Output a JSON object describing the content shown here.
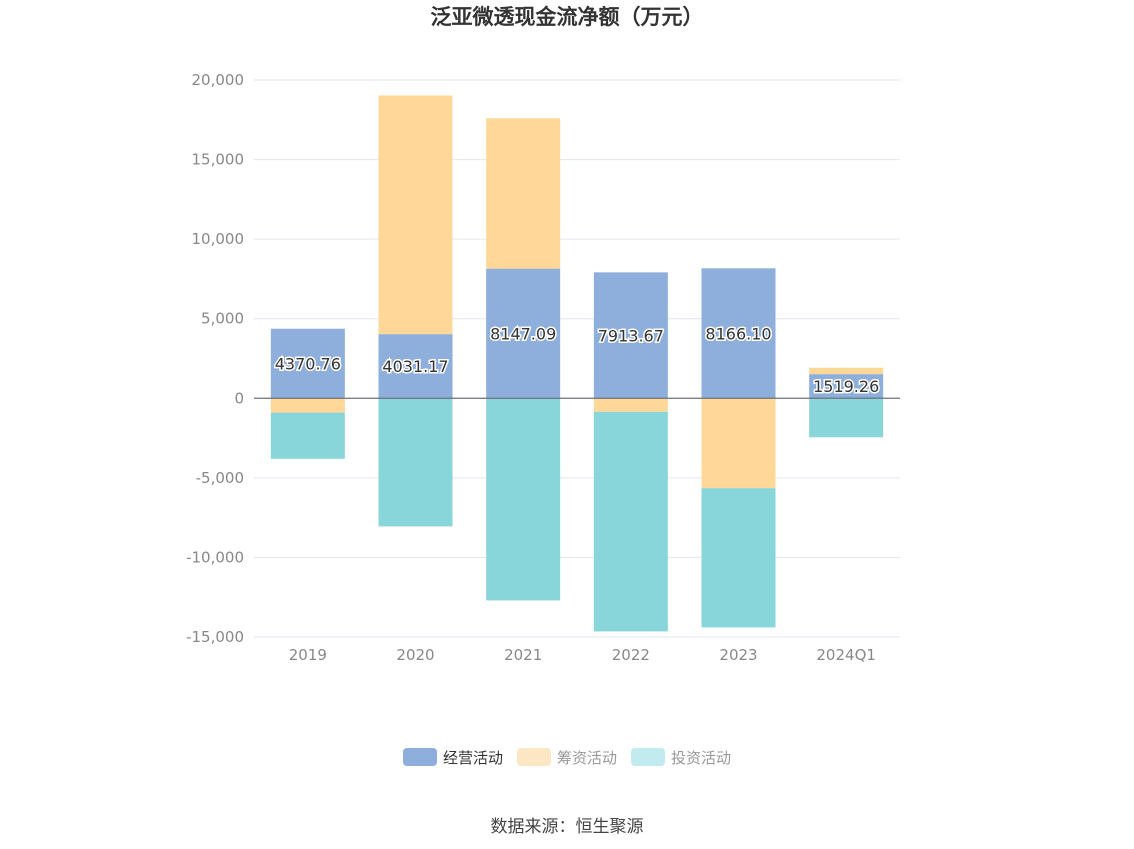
{
  "chart_data": {
    "type": "bar",
    "stacked": true,
    "title": "泛亚微透现金流净额（万元）",
    "categories": [
      "2019",
      "2020",
      "2021",
      "2022",
      "2023",
      "2024Q1"
    ],
    "series": [
      {
        "name": "经营活动",
        "color": "#8eaedb",
        "values": [
          4370.76,
          4031.17,
          8147.09,
          7913.67,
          8166.1,
          1519.26
        ],
        "show_labels": true
      },
      {
        "name": "筹资活动",
        "color": "#ffd899",
        "values": [
          -900,
          15000,
          9450,
          -850,
          -5650,
          400
        ],
        "show_labels": false
      },
      {
        "name": "投资活动",
        "color": "#88d5da",
        "values": [
          -2900,
          -8050,
          -12700,
          -13800,
          -8750,
          -2450
        ],
        "show_labels": false
      }
    ],
    "ylim": [
      -15000,
      20000
    ],
    "yticks": [
      -15000,
      -10000,
      -5000,
      0,
      5000,
      10000,
      15000,
      20000
    ],
    "ytick_labels": [
      "-15,000",
      "-10,000",
      "-5,000",
      "0",
      "5,000",
      "10,000",
      "15,000",
      "20,000"
    ],
    "grid": true,
    "legend_position": "bottom"
  },
  "legend": {
    "items": [
      {
        "label": "经营活动",
        "color": "#8eaedb",
        "text_color": "#333333"
      },
      {
        "label": "筹资活动",
        "color": "#fde6c4",
        "text_color": "#999999"
      },
      {
        "label": "投资活动",
        "color": "#c1ebee",
        "text_color": "#999999"
      }
    ]
  },
  "source": "数据来源：恒生聚源"
}
